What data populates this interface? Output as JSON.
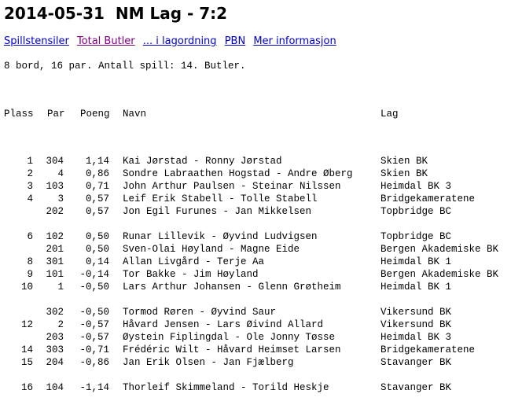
{
  "title": "2014-05-31  NM Lag - 7:2",
  "links": [
    {
      "label": "Spillstensiler",
      "visited": false
    },
    {
      "label": "Total Butler",
      "visited": true
    },
    {
      "label": "... i lagordning",
      "visited": false
    },
    {
      "label": "PBN",
      "visited": false
    },
    {
      "label": "Mer informasjon",
      "visited": false
    }
  ],
  "info": "8 bord, 16 par. Antall spill: 14. Butler.",
  "headers": {
    "plass": "Plass",
    "par": "Par",
    "poeng": "Poeng",
    "navn": "Navn",
    "lag": "Lag"
  },
  "groups": [
    [
      {
        "plass": "1",
        "par": "304",
        "poeng": "1,14",
        "navn": "Kai Jørstad - Ronny Jørstad",
        "lag": "Skien BK"
      },
      {
        "plass": "2",
        "par": "4",
        "poeng": "0,86",
        "navn": "Sondre Labraathen Hogstad - Andre Øberg",
        "lag": "Skien BK"
      },
      {
        "plass": "3",
        "par": "103",
        "poeng": "0,71",
        "navn": "John Arthur Paulsen - Steinar Nilssen",
        "lag": "Heimdal BK 3"
      },
      {
        "plass": "4",
        "par": "3",
        "poeng": "0,57",
        "navn": "Leif Erik Stabell - Tolle Stabell",
        "lag": "Bridgekameratene"
      },
      {
        "plass": "",
        "par": "202",
        "poeng": "0,57",
        "navn": "Jon Egil Furunes - Jan Mikkelsen",
        "lag": "Topbridge BC"
      }
    ],
    [
      {
        "plass": "6",
        "par": "102",
        "poeng": "0,50",
        "navn": "Runar Lillevik - Øyvind Ludvigsen",
        "lag": "Topbridge BC"
      },
      {
        "plass": "",
        "par": "201",
        "poeng": "0,50",
        "navn": "Sven-Olai Høyland - Magne Eide",
        "lag": "Bergen Akademiske BK"
      },
      {
        "plass": "8",
        "par": "301",
        "poeng": "0,14",
        "navn": "Allan Livgård - Terje Aa",
        "lag": "Heimdal BK 1"
      },
      {
        "plass": "9",
        "par": "101",
        "poeng": "-0,14",
        "navn": "Tor Bakke - Jim Høyland",
        "lag": "Bergen Akademiske BK"
      },
      {
        "plass": "10",
        "par": "1",
        "poeng": "-0,50",
        "navn": "Lars Arthur Johansen - Glenn Grøtheim",
        "lag": "Heimdal BK 1"
      }
    ],
    [
      {
        "plass": "",
        "par": "302",
        "poeng": "-0,50",
        "navn": "Tormod Røren - Øyvind Saur",
        "lag": "Vikersund BK"
      },
      {
        "plass": "12",
        "par": "2",
        "poeng": "-0,57",
        "navn": "Håvard Jensen - Lars Øivind Allard",
        "lag": "Vikersund BK"
      },
      {
        "plass": "",
        "par": "203",
        "poeng": "-0,57",
        "navn": "Øystein Fiplingdal - Ole Jonny Tøsse",
        "lag": "Heimdal BK 3"
      },
      {
        "plass": "14",
        "par": "303",
        "poeng": "-0,71",
        "navn": "Frédéric Wilt - Håvard Heimset Larsen",
        "lag": "Bridgekameratene"
      },
      {
        "plass": "15",
        "par": "204",
        "poeng": "-0,86",
        "navn": "Jan Erik Olsen - Jan Fjælberg",
        "lag": "Stavanger BK"
      }
    ],
    [
      {
        "plass": "16",
        "par": "104",
        "poeng": "-1,14",
        "navn": "Thorleif Skimmeland - Torild Heskje",
        "lag": "Stavanger BK"
      }
    ]
  ]
}
